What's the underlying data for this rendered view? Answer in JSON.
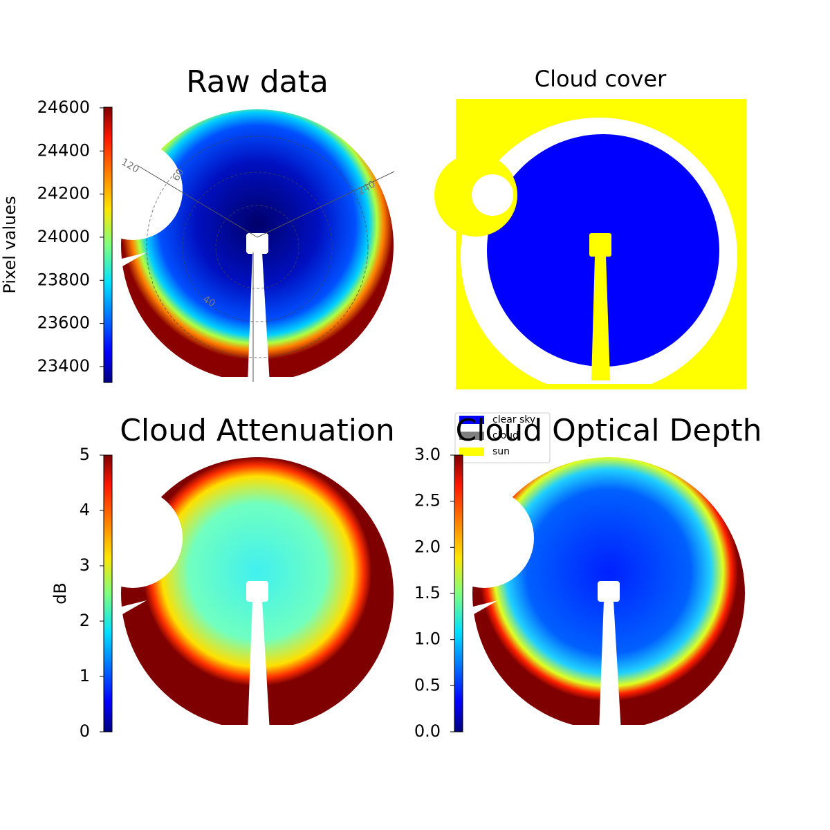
{
  "chart_data": [
    {
      "type": "image",
      "title": "Raw data",
      "colorbar_label": "Pixel values",
      "clim": [
        23326,
        24603
      ],
      "yticks": [
        23400,
        23600,
        23800,
        24000,
        24200,
        24400,
        24600
      ],
      "annotations": [
        "120",
        "60",
        "240",
        "40"
      ]
    },
    {
      "type": "image",
      "title": "Cloud cover",
      "legend": [
        {
          "name": "clear sky",
          "color": "#0000ff"
        },
        {
          "name": "cloud",
          "color": "#808080"
        },
        {
          "name": "sun",
          "color": "#ffff00"
        }
      ]
    },
    {
      "type": "image",
      "title": "Cloud Attenuation",
      "colorbar_label": "dB",
      "clim": [
        0,
        5
      ],
      "yticks": [
        0,
        1,
        2,
        3,
        4,
        5
      ]
    },
    {
      "type": "image",
      "title": "Cloud Optical Depth",
      "clim": [
        0,
        3
      ],
      "yticks": [
        {
          "value": 0,
          "label": "0.0"
        },
        {
          "value": 0.5,
          "label": "0.5"
        },
        {
          "value": 1,
          "label": "1.0"
        },
        {
          "value": 1.5,
          "label": "1.5"
        },
        {
          "value": 2,
          "label": "2.0"
        },
        {
          "value": 2.5,
          "label": "2.5"
        },
        {
          "value": 3,
          "label": "3.0"
        }
      ]
    }
  ]
}
